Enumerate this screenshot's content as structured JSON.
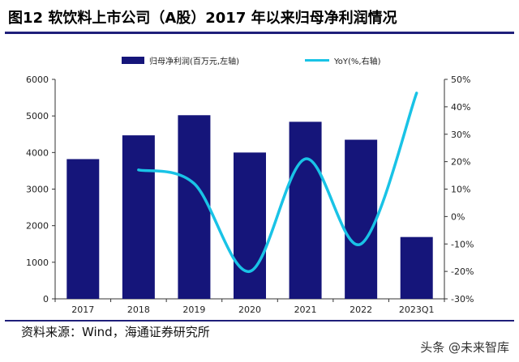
{
  "title": "图12 软饮料上市公司（A股）2017 年以来归母净利润情况",
  "source": "资料来源：Wind，海通证券研究所",
  "watermark": "头条 @未来智库",
  "chart_data": {
    "type": "bar+line",
    "categories": [
      "2017",
      "2018",
      "2019",
      "2020",
      "2021",
      "2022",
      "2023Q1"
    ],
    "series": [
      {
        "name": "归母净利润(百万元,左轴)",
        "type": "bar",
        "axis": "left",
        "values": [
          3820,
          4470,
          5020,
          4000,
          4840,
          4350,
          1690
        ],
        "color": "#15157a"
      },
      {
        "name": "YoY(%,右轴)",
        "type": "line",
        "axis": "right",
        "values": [
          null,
          17,
          12,
          -20,
          21,
          -10,
          45
        ],
        "color": "#19c3e6"
      }
    ],
    "ylim_left": [
      0,
      6000
    ],
    "yticks_left": [
      "0",
      "1000",
      "2000",
      "3000",
      "4000",
      "5000",
      "6000"
    ],
    "ylim_right": [
      -30,
      50
    ],
    "yticks_right": [
      "-30%",
      "-20%",
      "-10%",
      "0%",
      "10%",
      "20%",
      "30%",
      "40%",
      "50%"
    ],
    "grid": false,
    "legend_position": "top"
  }
}
